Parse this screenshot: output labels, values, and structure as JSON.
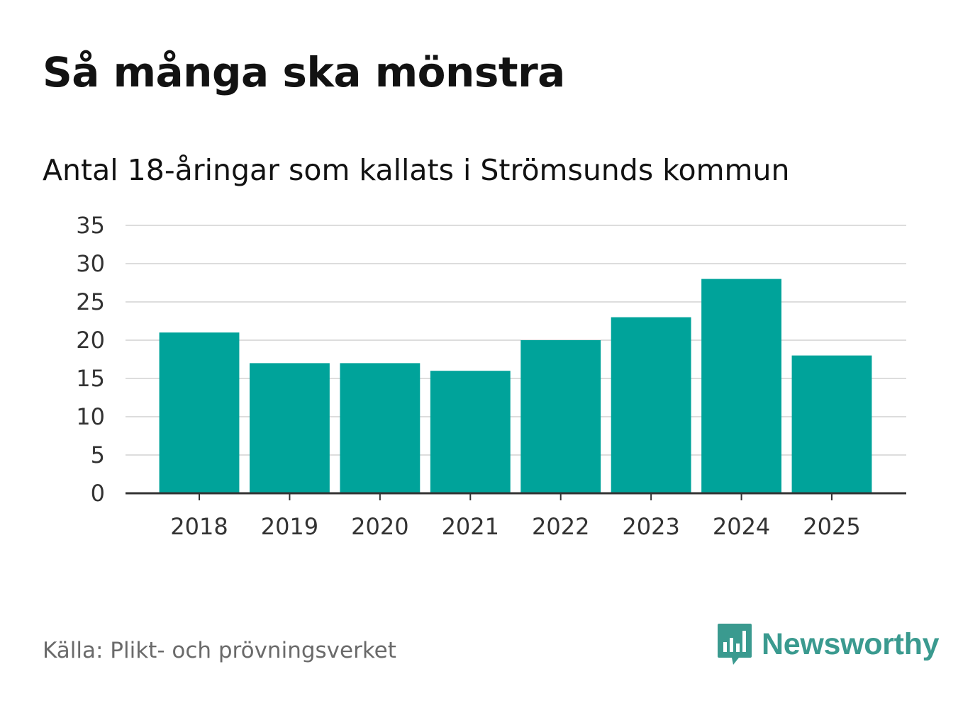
{
  "header": {
    "title": "Så många ska mönstra",
    "subtitle": "Antal 18-åringar som kallats i Strömsunds kommun"
  },
  "footer": {
    "source": "Källa: Plikt- och prövningsverket",
    "brand": "Newsworthy",
    "brand_icon": "bar-chart-speech-bubble-icon"
  },
  "colors": {
    "bar": "#00a39a",
    "grid": "#dddddd",
    "axis": "#333333",
    "brand": "#3a9a8f"
  },
  "chart_data": {
    "type": "bar",
    "title": "Så många ska mönstra",
    "subtitle": "Antal 18-åringar som kallats i Strömsunds kommun",
    "categories": [
      "2018",
      "2019",
      "2020",
      "2021",
      "2022",
      "2023",
      "2024",
      "2025"
    ],
    "values": [
      21,
      17,
      17,
      16,
      20,
      23,
      28,
      18
    ],
    "xlabel": "",
    "ylabel": "",
    "ylim": [
      0,
      35
    ],
    "yticks": [
      0,
      5,
      10,
      15,
      20,
      25,
      30,
      35
    ],
    "grid": true,
    "legend": "none"
  }
}
